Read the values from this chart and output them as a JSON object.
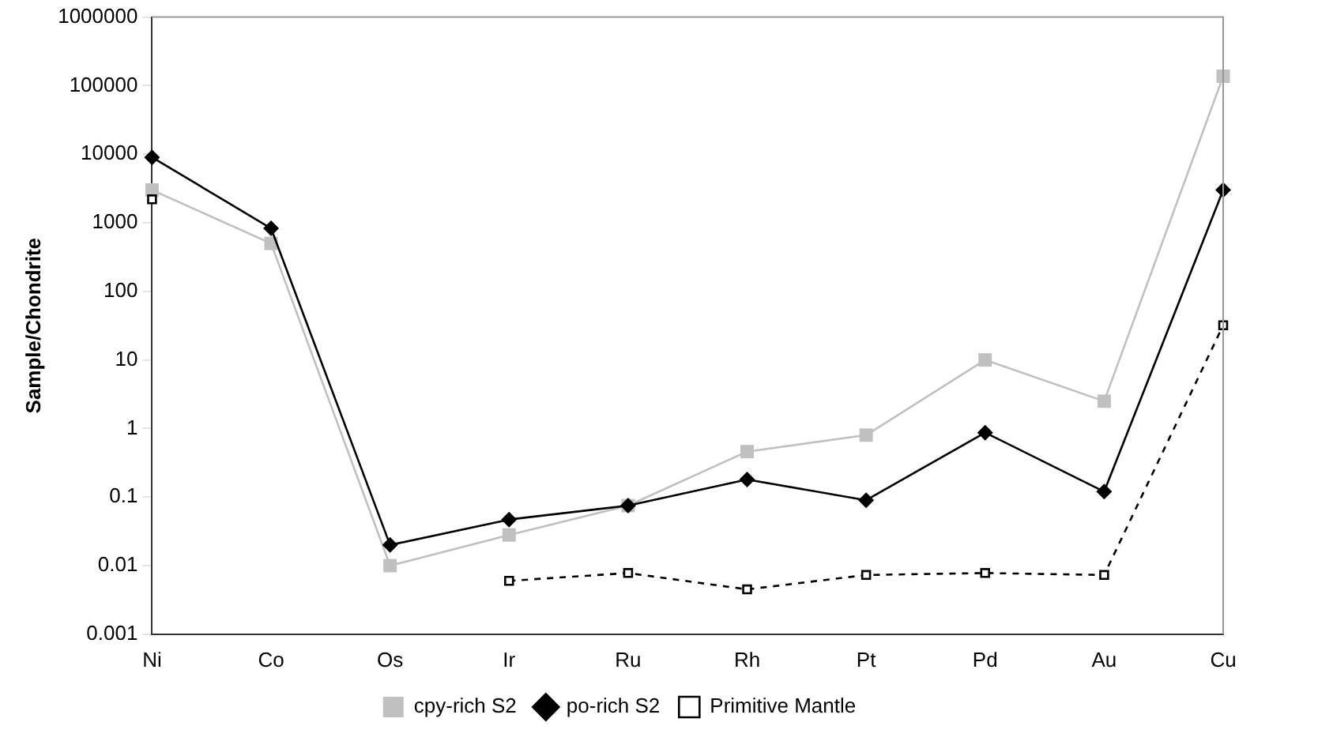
{
  "chart_data": {
    "type": "line",
    "ylabel": "Sample/Chondrite",
    "categories": [
      "Ni",
      "Co",
      "Os",
      "Ir",
      "Ru",
      "Rh",
      "Pt",
      "Pd",
      "Au",
      "Cu"
    ],
    "log": "y",
    "ylim": [
      0.001,
      1000000
    ],
    "yticks": [
      0.001,
      0.01,
      0.1,
      1,
      10,
      100,
      1000,
      10000,
      100000,
      1000000
    ],
    "grid": false,
    "legend": "bottom",
    "series": [
      {
        "name": "cpy-rich S2",
        "color": "#c0c0c0",
        "marker": "square",
        "line_style": "solid",
        "values": [
          3000,
          500,
          0.01,
          0.028,
          0.075,
          0.46,
          0.8,
          10,
          2.5,
          137000
        ]
      },
      {
        "name": "po-rich S2",
        "color": "#000000",
        "marker": "diamond",
        "line_style": "solid",
        "values": [
          9000,
          830,
          0.02,
          0.047,
          0.075,
          0.18,
          0.09,
          0.87,
          0.12,
          3000
        ]
      },
      {
        "name": "Primitive Mantle",
        "color": "#000000",
        "marker": "square",
        "line_style": "dashed",
        "values": [
          2200,
          null,
          null,
          0.006,
          0.0078,
          0.0045,
          0.0073,
          0.0078,
          0.0073,
          32
        ]
      }
    ]
  }
}
